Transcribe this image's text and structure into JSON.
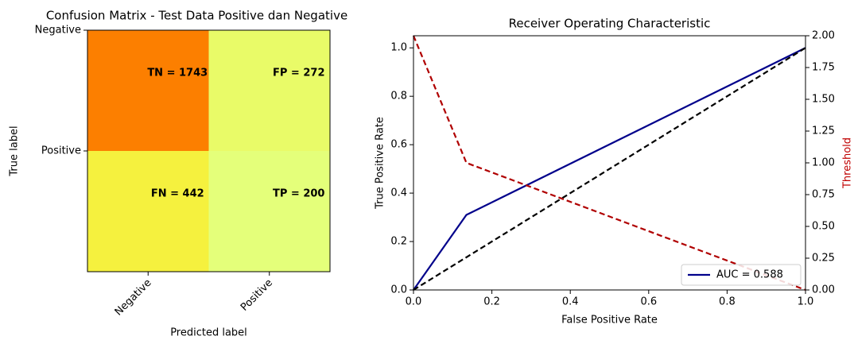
{
  "chart_data": [
    {
      "type": "heatmap",
      "title": "Confusion Matrix - Test Data Positive dan Negative",
      "x_categories": [
        "Negative",
        "Positive"
      ],
      "y_categories": [
        "Negative",
        "Positive"
      ],
      "values": [
        [
          1743,
          272
        ],
        [
          442,
          200
        ]
      ],
      "value_labels": [
        [
          "TN = 1743",
          "FP = 272"
        ],
        [
          "FN = 442",
          "TP = 200"
        ]
      ],
      "x_label": "Predicted label",
      "y_label": "True label",
      "colormap": [
        "#e4ff7a",
        "#ffe81a",
        "#ffbd00",
        "#ffa000",
        "#fc7f00"
      ]
    },
    {
      "type": "line",
      "title": "Receiver Operating Characteristic",
      "x_label": "False Positive Rate",
      "y_label": "True Positive Rate",
      "y2_label": "Threshold",
      "y2_label_color": "#c00000",
      "series": [
        {
          "name": "AUC = 0.588",
          "color": "#00008b",
          "linestyle": "solid",
          "x": [
            0,
            0.135,
            1
          ],
          "values": [
            0,
            0.31,
            1
          ]
        },
        {
          "color": "#000000",
          "linestyle": "dashed",
          "x": [
            0,
            1
          ],
          "values": [
            0,
            1
          ]
        },
        {
          "color": "#b00000",
          "linestyle": "dashed",
          "axis": "y2",
          "x": [
            0,
            0.135,
            1
          ],
          "values": [
            2,
            1,
            0
          ]
        }
      ],
      "xlim": [
        0,
        1
      ],
      "ylim": [
        0,
        1.05
      ],
      "y2lim": [
        0,
        2
      ],
      "xticks": [
        {
          "value": 0,
          "label": "0.0"
        },
        {
          "value": 0.2,
          "label": "0.2"
        },
        {
          "value": 0.4,
          "label": "0.4"
        },
        {
          "value": 0.6,
          "label": "0.6"
        },
        {
          "value": 0.8,
          "label": "0.8"
        },
        {
          "value": 1,
          "label": "1.0"
        }
      ],
      "yticks": [
        {
          "value": 0,
          "label": "0.0"
        },
        {
          "value": 0.2,
          "label": "0.2"
        },
        {
          "value": 0.4,
          "label": "0.4"
        },
        {
          "value": 0.6,
          "label": "0.6"
        },
        {
          "value": 0.8,
          "label": "0.8"
        },
        {
          "value": 1,
          "label": "1.0"
        }
      ],
      "y2ticks": [
        {
          "value": 0,
          "label": "0.00"
        },
        {
          "value": 0.25,
          "label": "0.25"
        },
        {
          "value": 0.5,
          "label": "0.50"
        },
        {
          "value": 0.75,
          "label": "0.75"
        },
        {
          "value": 1,
          "label": "1.00"
        },
        {
          "value": 1.25,
          "label": "1.25"
        },
        {
          "value": 1.5,
          "label": "1.50"
        },
        {
          "value": 1.75,
          "label": "1.75"
        },
        {
          "value": 2,
          "label": "2.00"
        }
      ],
      "legend": "lower right"
    }
  ]
}
